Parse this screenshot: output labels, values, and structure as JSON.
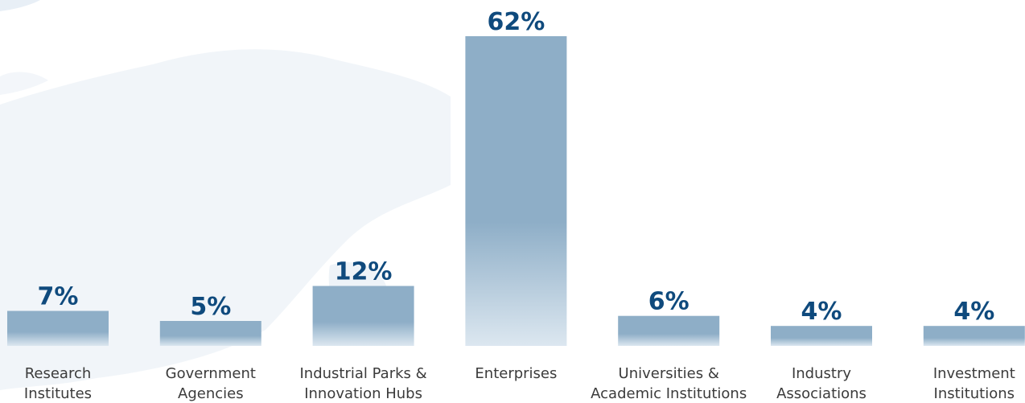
{
  "chart_data": {
    "type": "bar",
    "categories": [
      [
        "Research",
        "Institutes"
      ],
      [
        "Government",
        "Agencies"
      ],
      [
        "Industrial Parks &",
        "Innovation Hubs"
      ],
      [
        "Enterprises"
      ],
      [
        "Universities &",
        "Academic Institutions"
      ],
      [
        "Industry",
        "Associations"
      ],
      [
        "Investment",
        "Institutions"
      ]
    ],
    "values": [
      7,
      5,
      12,
      62,
      6,
      4,
      4
    ],
    "value_labels": [
      "7%",
      "5%",
      "12%",
      "62%",
      "6%",
      "4%",
      "4%"
    ],
    "unit": "%",
    "ylim": [
      0,
      62
    ],
    "grid": false,
    "legend": "none"
  },
  "colors": {
    "value_label": "#0f4a7d",
    "bar_top": "#8eaec7",
    "bar_bottom": "#dce7f0",
    "category_label": "#3b3b3b",
    "map_fill": "#f1f5f9"
  }
}
